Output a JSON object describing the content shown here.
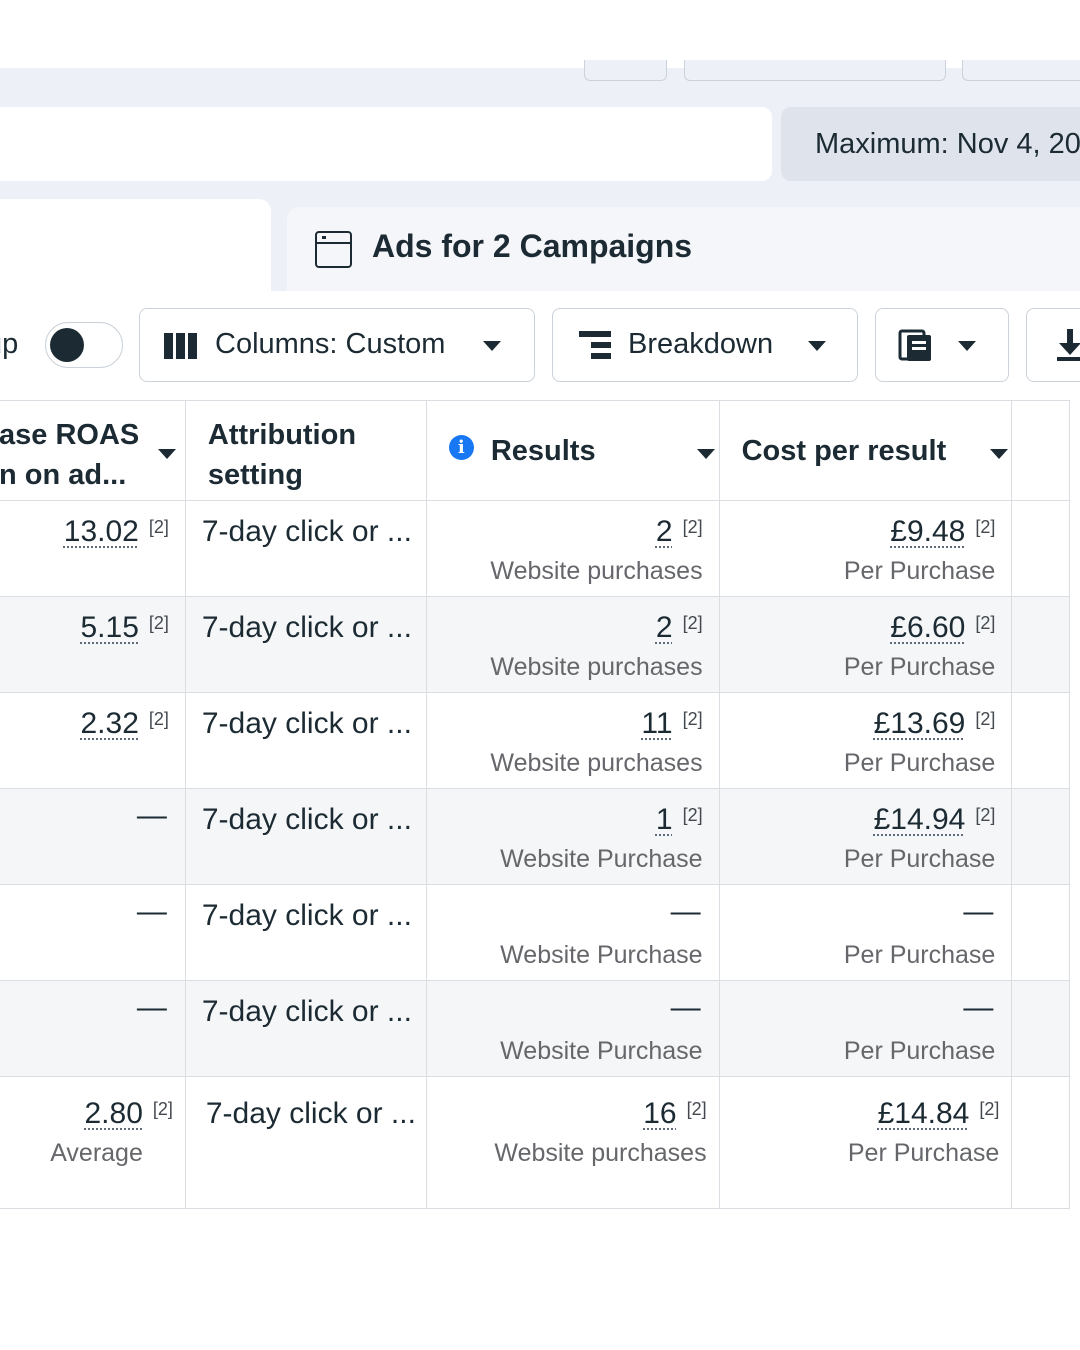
{
  "date_range": {
    "label": "Maximum: Nov 4, 20"
  },
  "tab": {
    "title": "Ads for 2 Campaigns"
  },
  "toolbar": {
    "toggle_label": "up",
    "columns_label": "Columns: Custom",
    "breakdown_label": "Breakdown"
  },
  "table": {
    "headers": {
      "roas": "ase ROAS\nn on ad...",
      "attribution": "Attribution\nsetting",
      "results": "Results",
      "cost": "Cost per result"
    },
    "rows": [
      {
        "roas": "13.02",
        "roas_sup": "[2]",
        "attribution": "7-day click or ...",
        "results": "2",
        "results_sup": "[2]",
        "results_sub": "Website purchases",
        "cost": "£9.48",
        "cost_sup": "[2]",
        "cost_sub": "Per Purchase"
      },
      {
        "roas": "5.15",
        "roas_sup": "[2]",
        "attribution": "7-day click or ...",
        "results": "2",
        "results_sup": "[2]",
        "results_sub": "Website purchases",
        "cost": "£6.60",
        "cost_sup": "[2]",
        "cost_sub": "Per Purchase"
      },
      {
        "roas": "2.32",
        "roas_sup": "[2]",
        "attribution": "7-day click or ...",
        "results": "11",
        "results_sup": "[2]",
        "results_sub": "Website purchases",
        "cost": "£13.69",
        "cost_sup": "[2]",
        "cost_sub": "Per Purchase"
      },
      {
        "roas": "—",
        "attribution": "7-day click or ...",
        "results": "1",
        "results_sup": "[2]",
        "results_sub": "Website Purchase",
        "cost": "£14.94",
        "cost_sup": "[2]",
        "cost_sub": "Per Purchase"
      },
      {
        "roas": "—",
        "attribution": "7-day click or ...",
        "results": "—",
        "results_sub": "Website Purchase",
        "cost": "—",
        "cost_sub": "Per Purchase"
      },
      {
        "roas": "—",
        "attribution": "7-day click or ...",
        "results": "—",
        "results_sub": "Website Purchase",
        "cost": "—",
        "cost_sub": "Per Purchase"
      }
    ],
    "total": {
      "roas": "2.80",
      "roas_sup": "[2]",
      "roas_sub": "Average",
      "attribution": "7-day click or ...",
      "results": "16",
      "results_sup": "[2]",
      "results_sub": "Website purchases",
      "cost": "£14.84",
      "cost_sup": "[2]",
      "cost_sub": "Per Purchase"
    }
  },
  "colors": {
    "accent": "#1877f2",
    "text": "#1c2b33",
    "muted": "#65676b",
    "border": "#dadde1",
    "band": "#eef0f7"
  },
  "icons": [
    "calendar-tab-icon",
    "columns-icon",
    "breakdown-icon",
    "reports-icon",
    "download-icon",
    "info-icon",
    "chevron-down-icon"
  ]
}
